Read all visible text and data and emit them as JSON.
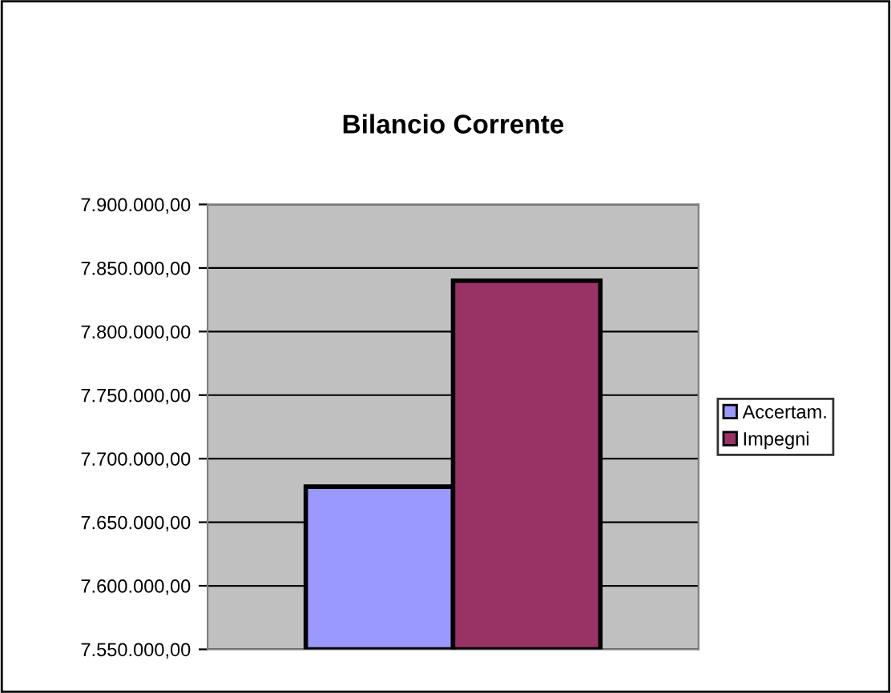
{
  "chart_data": {
    "type": "bar",
    "title": "Bilancio Corrente",
    "categories": [
      null
    ],
    "series": [
      {
        "name": "Accertam.",
        "color": "#9999ff",
        "values": [
          7678000
        ]
      },
      {
        "name": "Impegni",
        "color": "#993366",
        "values": [
          7840000
        ]
      }
    ],
    "ylim": [
      7550000,
      7900000
    ],
    "yticks": [
      {
        "value": 7550000,
        "label": "7.550.000,00"
      },
      {
        "value": 7600000,
        "label": "7.600.000,00"
      },
      {
        "value": 7650000,
        "label": "7.650.000,00"
      },
      {
        "value": 7700000,
        "label": "7.700.000,00"
      },
      {
        "value": 7750000,
        "label": "7.750.000,00"
      },
      {
        "value": 7800000,
        "label": "7.800.000,00"
      },
      {
        "value": 7850000,
        "label": "7.850.000,00"
      },
      {
        "value": 7900000,
        "label": "7.900.000,00"
      }
    ],
    "grid": "y",
    "legend": "right"
  }
}
